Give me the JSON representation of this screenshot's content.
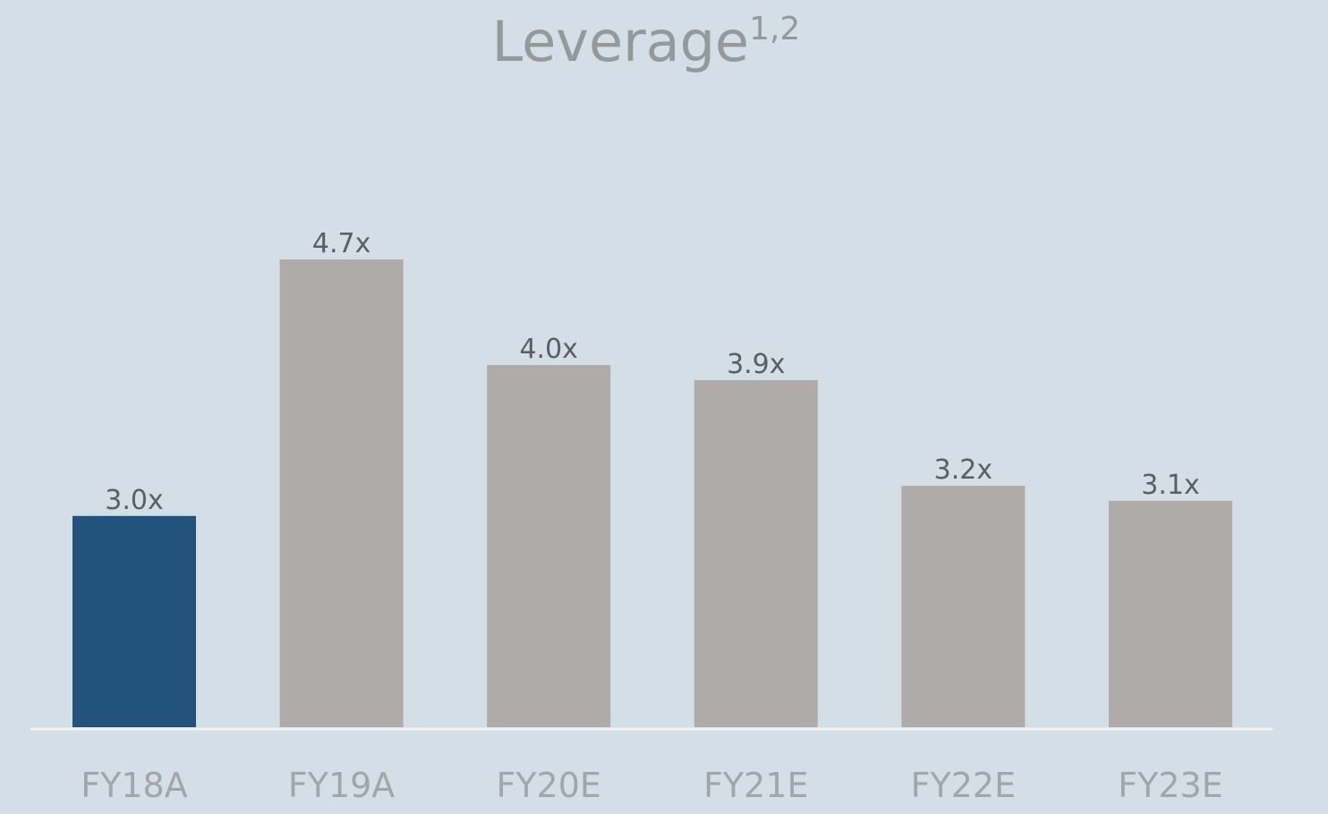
{
  "chart_data": {
    "type": "bar",
    "title": "Leverage",
    "title_superscript": "1,2",
    "categories": [
      "FY18A",
      "FY19A",
      "FY20E",
      "FY21E",
      "FY22E",
      "FY23E"
    ],
    "values": [
      3.0,
      4.7,
      4.0,
      3.9,
      3.2,
      3.1
    ],
    "data_labels": [
      "3.0x",
      "4.7x",
      "4.0x",
      "3.9x",
      "3.2x",
      "3.1x"
    ],
    "ylim": [
      1.6,
      4.7
    ],
    "grid": false,
    "legend": "none",
    "colors": {
      "background": "#d4dee6",
      "highlight_bar": "#23527c",
      "default_bar": "#afabab",
      "axis_line": "#f2f2f2",
      "title": "#949a9b",
      "data_label": "#5a5f61",
      "tick_label": "#a1a6a8"
    },
    "highlight_index": 0
  }
}
